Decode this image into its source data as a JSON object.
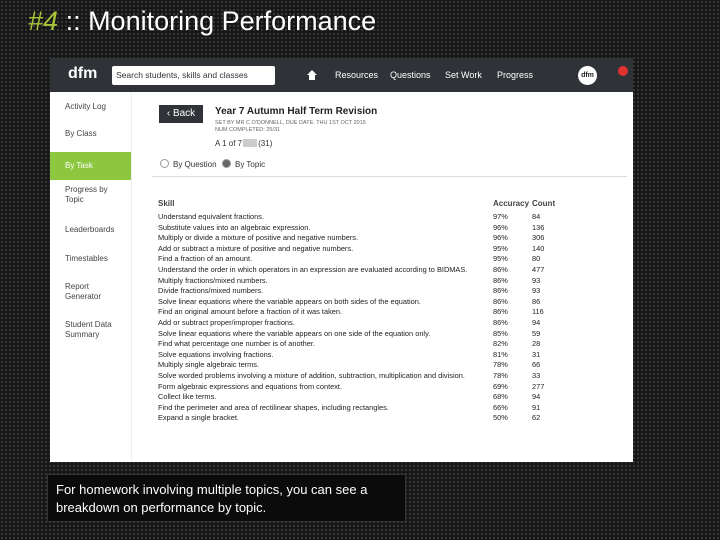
{
  "slide": {
    "number": "#4",
    "title": ":: Monitoring Performance",
    "caption": "For homework involving multiple topics, you can see a breakdown on performance by topic."
  },
  "app": {
    "logo": "dfm",
    "search": "Search students, skills and classes",
    "nav": [
      "Resources",
      "Questions",
      "Set Work",
      "Progress"
    ],
    "user": "dfm"
  },
  "sidebar": [
    "Activity Log",
    "By Class",
    "By Task",
    "Progress by Topic",
    "Leaderboards",
    "Timestables",
    "Report Generator",
    "Student Data Summary"
  ],
  "header": {
    "back": "Back",
    "title": "Year 7 Autumn Half Term Revision",
    "meta": [
      "SET BY MR C O'DONNELL, DUE DATE: THU 1ST OCT 2015",
      "NUM COMPLETED: 25/31"
    ],
    "counter": "A 1 of 7",
    "counter_total": "(31)",
    "options": [
      "By Question",
      "By Topic"
    ]
  },
  "table": {
    "headers": [
      "Skill",
      "Accuracy",
      "Count"
    ],
    "rows": [
      [
        "Understand equivalent fractions.",
        "97%",
        84
      ],
      [
        "Substitute values into an algebraic expression.",
        "96%",
        136
      ],
      [
        "Multiply or divide a mixture of positive and negative numbers.",
        "96%",
        306
      ],
      [
        "Add or subtract a mixture of positive and negative numbers.",
        "95%",
        140
      ],
      [
        "Find a fraction of an amount.",
        "95%",
        80
      ],
      [
        "Understand the order in which operators in an expression are evaluated according to BIDMAS.",
        "86%",
        477
      ],
      [
        "Multiply fractions/mixed numbers.",
        "86%",
        93
      ],
      [
        "Divide fractions/mixed numbers.",
        "86%",
        93
      ],
      [
        "Solve linear equations where the variable appears on both sides of the equation.",
        "86%",
        86
      ],
      [
        "Find an original amount before a fraction of it was taken.",
        "86%",
        116
      ],
      [
        "Add or subtract proper/improper fractions.",
        "86%",
        94
      ],
      [
        "Solve linear equations where the variable appears on one side of the equation only.",
        "85%",
        59
      ],
      [
        "Find what percentage one number is of another.",
        "82%",
        28
      ],
      [
        "Solve equations involving fractions.",
        "81%",
        31
      ],
      [
        "Multiply single algebraic terms.",
        "78%",
        66
      ],
      [
        "Solve worded problems involving a mixture of addition, subtraction, multiplication and division.",
        "78%",
        33
      ],
      [
        "Form algebraic expressions and equations from context.",
        "69%",
        277
      ],
      [
        "Collect like terms.",
        "68%",
        94
      ],
      [
        "Find the perimeter and area of rectilinear shapes, including rectangles.",
        "66%",
        91
      ],
      [
        "Expand a single bracket.",
        "50%",
        62
      ]
    ]
  }
}
